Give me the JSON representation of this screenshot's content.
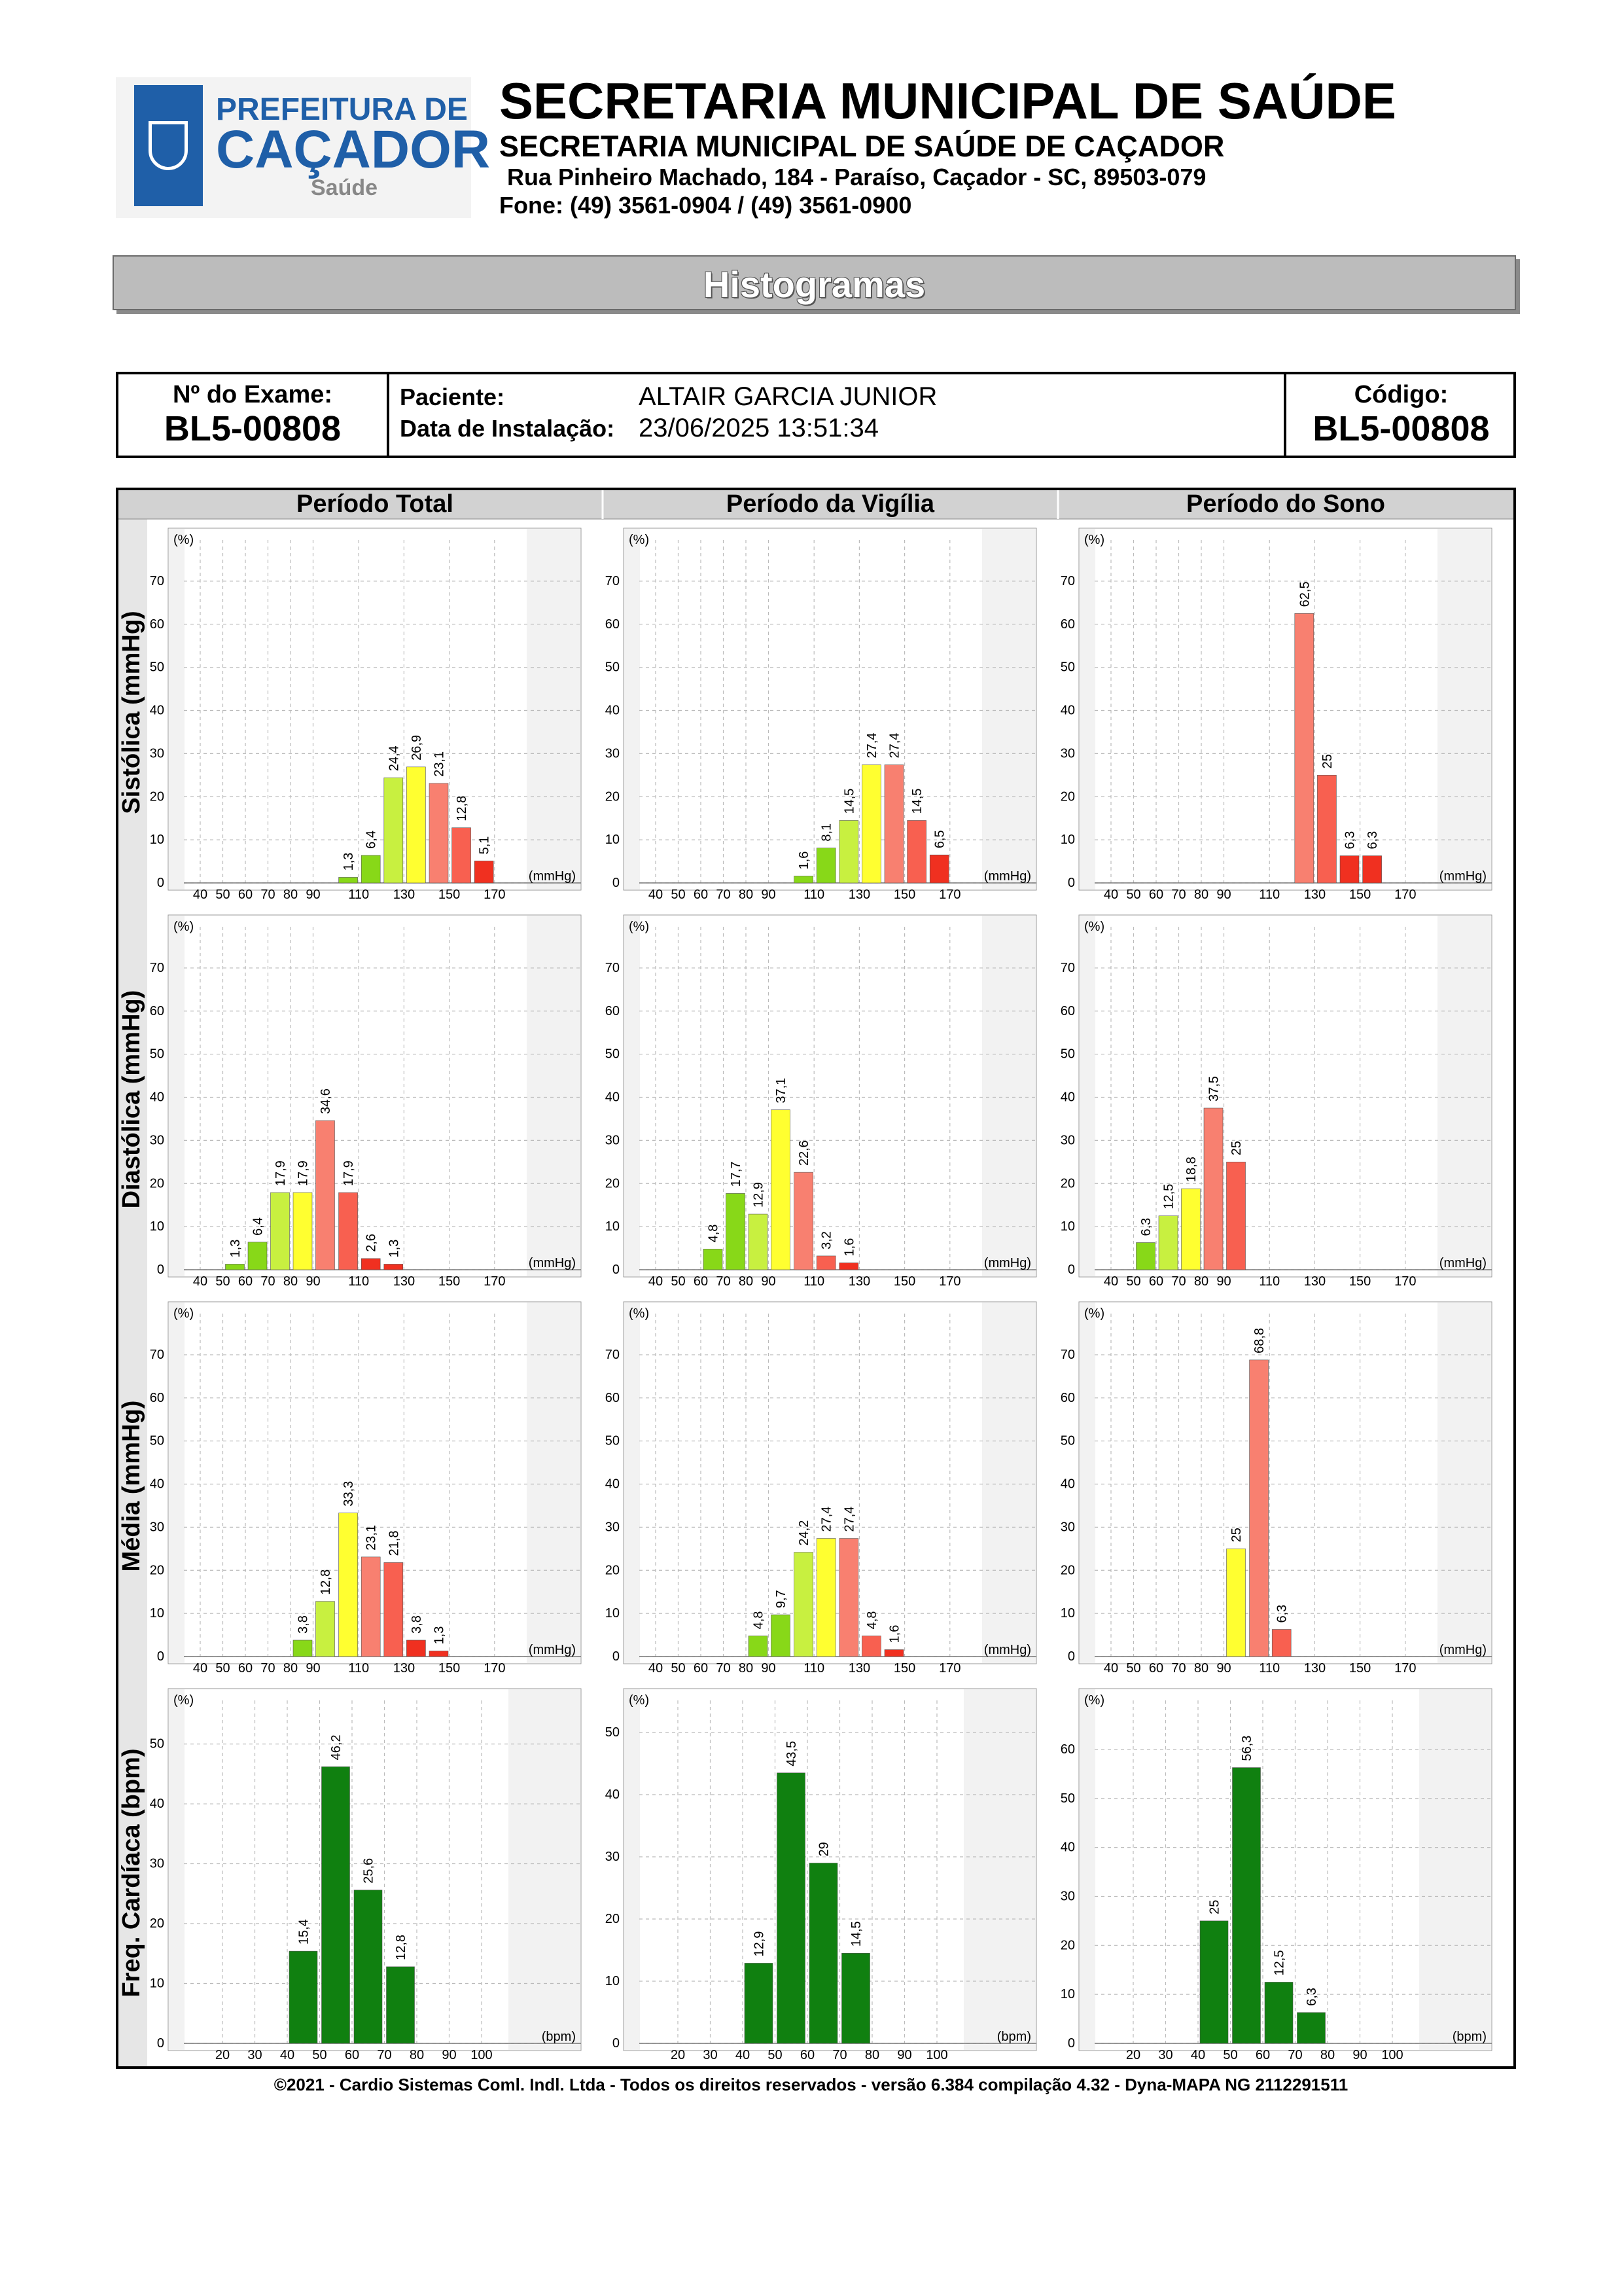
{
  "header": {
    "logo": {
      "line1": "PREFEITURA DE",
      "line2": "CAÇADOR",
      "line3": "Saúde"
    },
    "title": "SECRETARIA MUNICIPAL DE SAÚDE",
    "subtitle": "SECRETARIA MUNICIPAL DE SAÚDE DE CAÇADOR",
    "address": "Rua Pinheiro Machado, 184 - Paraíso, Caçador - SC, 89503-079",
    "phone": "Fone: (49) 3561-0904  / (49) 3561-0900"
  },
  "banner": {
    "title": "Histogramas"
  },
  "info": {
    "exam_label": "Nº do Exame:",
    "exam_value": "BL5-00808",
    "patient_label": "Paciente:",
    "patient_value": "ALTAIR GARCIA JUNIOR",
    "install_label": "Data de Instalação:",
    "install_value": "23/06/2025 13:51:34",
    "code_label": "Código:",
    "code_value": "BL5-00808"
  },
  "columns": [
    "Período Total",
    "Período da Vigília",
    "Período do Sono"
  ],
  "rows": [
    "Sistólica (mmHg)",
    "Diastólica (mmHg)",
    "Média (mmHg)",
    "Freq. Cardíaca (bpm)"
  ],
  "colors": {
    "green_light": "#88d818",
    "green_yellow": "#c8f040",
    "yellow": "#ffff30",
    "salmon": "#f88070",
    "red_light": "#f86050",
    "red": "#f03020",
    "hr_green": "#108010"
  },
  "chart_data": [
    {
      "type": "bar",
      "row": "Sistólica (mmHg)",
      "column": "Período Total",
      "y_unit": "(%)",
      "x_unit": "(mmHg)",
      "ylim": [
        0,
        75
      ],
      "yticks": [
        0,
        10,
        20,
        30,
        40,
        50,
        60,
        70
      ],
      "xticks": [
        "40",
        "50",
        "60",
        "70",
        "80",
        "90",
        "110",
        "130",
        "150",
        "170"
      ],
      "bins": [
        {
          "x": 100,
          "value": 1.3,
          "label": "1,3",
          "color": "green_light"
        },
        {
          "x": 110,
          "value": 6.4,
          "label": "6,4",
          "color": "green_light"
        },
        {
          "x": 120,
          "value": 24.4,
          "label": "24,4",
          "color": "green_yellow"
        },
        {
          "x": 130,
          "value": 26.9,
          "label": "26,9",
          "color": "yellow"
        },
        {
          "x": 140,
          "value": 23.1,
          "label": "23,1",
          "color": "salmon"
        },
        {
          "x": 150,
          "value": 12.8,
          "label": "12,8",
          "color": "red_light"
        },
        {
          "x": 160,
          "value": 5.1,
          "label": "5,1",
          "color": "red"
        }
      ]
    },
    {
      "type": "bar",
      "row": "Sistólica (mmHg)",
      "column": "Período da Vigília",
      "y_unit": "(%)",
      "x_unit": "(mmHg)",
      "ylim": [
        0,
        75
      ],
      "yticks": [
        0,
        10,
        20,
        30,
        40,
        50,
        60,
        70
      ],
      "xticks": [
        "40",
        "50",
        "60",
        "70",
        "80",
        "90",
        "110",
        "130",
        "150",
        "170"
      ],
      "bins": [
        {
          "x": 100,
          "value": 1.6,
          "label": "1,6",
          "color": "green_light"
        },
        {
          "x": 110,
          "value": 8.1,
          "label": "8,1",
          "color": "green_light"
        },
        {
          "x": 120,
          "value": 14.5,
          "label": "14,5",
          "color": "green_yellow"
        },
        {
          "x": 130,
          "value": 27.4,
          "label": "27,4",
          "color": "yellow"
        },
        {
          "x": 140,
          "value": 27.4,
          "label": "27,4",
          "color": "salmon"
        },
        {
          "x": 150,
          "value": 14.5,
          "label": "14,5",
          "color": "red_light"
        },
        {
          "x": 160,
          "value": 6.5,
          "label": "6,5",
          "color": "red"
        }
      ]
    },
    {
      "type": "bar",
      "row": "Sistólica (mmHg)",
      "column": "Período do Sono",
      "y_unit": "(%)",
      "x_unit": "(mmHg)",
      "ylim": [
        0,
        75
      ],
      "yticks": [
        0,
        10,
        20,
        30,
        40,
        50,
        60,
        70
      ],
      "xticks": [
        "40",
        "50",
        "60",
        "70",
        "80",
        "90",
        "110",
        "130",
        "150",
        "170"
      ],
      "bins": [
        {
          "x": 120,
          "value": 62.5,
          "label": "62,5",
          "color": "salmon"
        },
        {
          "x": 130,
          "value": 25,
          "label": "25",
          "color": "red_light"
        },
        {
          "x": 140,
          "value": 6.3,
          "label": "6,3",
          "color": "red"
        },
        {
          "x": 150,
          "value": 6.3,
          "label": "6,3",
          "color": "red"
        }
      ]
    },
    {
      "type": "bar",
      "row": "Diastólica (mmHg)",
      "column": "Período Total",
      "y_unit": "(%)",
      "x_unit": "(mmHg)",
      "ylim": [
        0,
        75
      ],
      "yticks": [
        0,
        10,
        20,
        30,
        40,
        50,
        60,
        70
      ],
      "xticks": [
        "40",
        "50",
        "60",
        "70",
        "80",
        "90",
        "110",
        "130",
        "150",
        "170"
      ],
      "bins": [
        {
          "x": 50,
          "value": 1.3,
          "label": "1,3",
          "color": "green_light"
        },
        {
          "x": 60,
          "value": 6.4,
          "label": "6,4",
          "color": "green_light"
        },
        {
          "x": 70,
          "value": 17.9,
          "label": "17,9",
          "color": "green_yellow"
        },
        {
          "x": 80,
          "value": 17.9,
          "label": "17,9",
          "color": "yellow"
        },
        {
          "x": 90,
          "value": 34.6,
          "label": "34,6",
          "color": "salmon"
        },
        {
          "x": 100,
          "value": 17.9,
          "label": "17,9",
          "color": "red_light"
        },
        {
          "x": 110,
          "value": 2.6,
          "label": "2,6",
          "color": "red"
        },
        {
          "x": 120,
          "value": 1.3,
          "label": "1,3",
          "color": "red"
        }
      ]
    },
    {
      "type": "bar",
      "row": "Diastólica (mmHg)",
      "column": "Período da Vigília",
      "y_unit": "(%)",
      "x_unit": "(mmHg)",
      "ylim": [
        0,
        75
      ],
      "yticks": [
        0,
        10,
        20,
        30,
        40,
        50,
        60,
        70
      ],
      "xticks": [
        "40",
        "50",
        "60",
        "70",
        "80",
        "90",
        "110",
        "130",
        "150",
        "170"
      ],
      "bins": [
        {
          "x": 60,
          "value": 4.8,
          "label": "4,8",
          "color": "green_light"
        },
        {
          "x": 70,
          "value": 17.7,
          "label": "17,7",
          "color": "green_light"
        },
        {
          "x": 80,
          "value": 12.9,
          "label": "12,9",
          "color": "green_yellow"
        },
        {
          "x": 90,
          "value": 37.1,
          "label": "37,1",
          "color": "yellow"
        },
        {
          "x": 100,
          "value": 22.6,
          "label": "22,6",
          "color": "salmon"
        },
        {
          "x": 110,
          "value": 3.2,
          "label": "3,2",
          "color": "red_light"
        },
        {
          "x": 120,
          "value": 1.6,
          "label": "1,6",
          "color": "red"
        }
      ]
    },
    {
      "type": "bar",
      "row": "Diastólica (mmHg)",
      "column": "Período do Sono",
      "y_unit": "(%)",
      "x_unit": "(mmHg)",
      "ylim": [
        0,
        75
      ],
      "yticks": [
        0,
        10,
        20,
        30,
        40,
        50,
        60,
        70
      ],
      "xticks": [
        "40",
        "50",
        "60",
        "70",
        "80",
        "90",
        "110",
        "130",
        "150",
        "170"
      ],
      "bins": [
        {
          "x": 50,
          "value": 6.3,
          "label": "6,3",
          "color": "green_light"
        },
        {
          "x": 60,
          "value": 12.5,
          "label": "12,5",
          "color": "green_yellow"
        },
        {
          "x": 70,
          "value": 18.8,
          "label": "18,8",
          "color": "yellow"
        },
        {
          "x": 80,
          "value": 37.5,
          "label": "37,5",
          "color": "salmon"
        },
        {
          "x": 90,
          "value": 25,
          "label": "25",
          "color": "red_light"
        }
      ]
    },
    {
      "type": "bar",
      "row": "Média (mmHg)",
      "column": "Período Total",
      "y_unit": "(%)",
      "x_unit": "(mmHg)",
      "ylim": [
        0,
        75
      ],
      "yticks": [
        0,
        10,
        20,
        30,
        40,
        50,
        60,
        70
      ],
      "xticks": [
        "40",
        "50",
        "60",
        "70",
        "80",
        "90",
        "110",
        "130",
        "150",
        "170"
      ],
      "bins": [
        {
          "x": 80,
          "value": 3.8,
          "label": "3,8",
          "color": "green_light"
        },
        {
          "x": 90,
          "value": 12.8,
          "label": "12,8",
          "color": "green_yellow"
        },
        {
          "x": 100,
          "value": 33.3,
          "label": "33,3",
          "color": "yellow"
        },
        {
          "x": 110,
          "value": 23.1,
          "label": "23,1",
          "color": "salmon"
        },
        {
          "x": 120,
          "value": 21.8,
          "label": "21,8",
          "color": "red_light"
        },
        {
          "x": 130,
          "value": 3.8,
          "label": "3,8",
          "color": "red"
        },
        {
          "x": 140,
          "value": 1.3,
          "label": "1,3",
          "color": "red"
        }
      ]
    },
    {
      "type": "bar",
      "row": "Média (mmHg)",
      "column": "Período da Vigília",
      "y_unit": "(%)",
      "x_unit": "(mmHg)",
      "ylim": [
        0,
        75
      ],
      "yticks": [
        0,
        10,
        20,
        30,
        40,
        50,
        60,
        70
      ],
      "xticks": [
        "40",
        "50",
        "60",
        "70",
        "80",
        "90",
        "110",
        "130",
        "150",
        "170"
      ],
      "bins": [
        {
          "x": 80,
          "value": 4.8,
          "label": "4,8",
          "color": "green_light"
        },
        {
          "x": 90,
          "value": 9.7,
          "label": "9,7",
          "color": "green_light"
        },
        {
          "x": 100,
          "value": 24.2,
          "label": "24,2",
          "color": "green_yellow"
        },
        {
          "x": 110,
          "value": 27.4,
          "label": "27,4",
          "color": "yellow"
        },
        {
          "x": 120,
          "value": 27.4,
          "label": "27,4",
          "color": "salmon"
        },
        {
          "x": 130,
          "value": 4.8,
          "label": "4,8",
          "color": "red_light"
        },
        {
          "x": 140,
          "value": 1.6,
          "label": "1,6",
          "color": "red"
        }
      ]
    },
    {
      "type": "bar",
      "row": "Média (mmHg)",
      "column": "Período do Sono",
      "y_unit": "(%)",
      "x_unit": "(mmHg)",
      "ylim": [
        0,
        75
      ],
      "yticks": [
        0,
        10,
        20,
        30,
        40,
        50,
        60,
        70
      ],
      "xticks": [
        "40",
        "50",
        "60",
        "70",
        "80",
        "90",
        "110",
        "130",
        "150",
        "170"
      ],
      "bins": [
        {
          "x": 90,
          "value": 25,
          "label": "25",
          "color": "yellow"
        },
        {
          "x": 100,
          "value": 68.8,
          "label": "68,8",
          "color": "salmon"
        },
        {
          "x": 110,
          "value": 6.3,
          "label": "6,3",
          "color": "red_light"
        }
      ]
    },
    {
      "type": "bar",
      "row": "Freq. Cardíaca (bpm)",
      "column": "Período Total",
      "y_unit": "(%)",
      "x_unit": "(bpm)",
      "ylim": [
        0,
        54
      ],
      "yticks": [
        0,
        10,
        20,
        30,
        40,
        50
      ],
      "xticks": [
        "20",
        "30",
        "40",
        "50",
        "60",
        "70",
        "80",
        "90",
        "100"
      ],
      "bins": [
        {
          "x": 40,
          "value": 15.4,
          "label": "15,4",
          "color": "hr_green"
        },
        {
          "x": 50,
          "value": 46.2,
          "label": "46,2",
          "color": "hr_green"
        },
        {
          "x": 60,
          "value": 25.6,
          "label": "25,6",
          "color": "hr_green"
        },
        {
          "x": 70,
          "value": 12.8,
          "label": "12,8",
          "color": "hr_green"
        }
      ]
    },
    {
      "type": "bar",
      "row": "Freq. Cardíaca (bpm)",
      "column": "Período da Vigília",
      "y_unit": "(%)",
      "x_unit": "(bpm)",
      "ylim": [
        0,
        52
      ],
      "yticks": [
        0,
        10,
        20,
        30,
        40,
        50
      ],
      "xticks": [
        "20",
        "30",
        "40",
        "50",
        "60",
        "70",
        "80",
        "90",
        "100"
      ],
      "bins": [
        {
          "x": 40,
          "value": 12.9,
          "label": "12,9",
          "color": "hr_green"
        },
        {
          "x": 50,
          "value": 43.5,
          "label": "43,5",
          "color": "hr_green"
        },
        {
          "x": 60,
          "value": 29,
          "label": "29",
          "color": "hr_green"
        },
        {
          "x": 70,
          "value": 14.5,
          "label": "14,5",
          "color": "hr_green"
        }
      ]
    },
    {
      "type": "bar",
      "row": "Freq. Cardíaca (bpm)",
      "column": "Período do Sono",
      "y_unit": "(%)",
      "x_unit": "(bpm)",
      "ylim": [
        0,
        66
      ],
      "yticks": [
        0,
        10,
        20,
        30,
        40,
        50,
        60
      ],
      "xticks": [
        "20",
        "30",
        "40",
        "50",
        "60",
        "70",
        "80",
        "90",
        "100"
      ],
      "bins": [
        {
          "x": 40,
          "value": 25,
          "label": "25",
          "color": "hr_green"
        },
        {
          "x": 50,
          "value": 56.3,
          "label": "56,3",
          "color": "hr_green"
        },
        {
          "x": 60,
          "value": 12.5,
          "label": "12,5",
          "color": "hr_green"
        },
        {
          "x": 70,
          "value": 6.3,
          "label": "6,3",
          "color": "hr_green"
        }
      ]
    }
  ],
  "footer": "©2021 - Cardio Sistemas Coml. Indl. Ltda - Todos os direitos reservados - versão 6.384 compilação 4.32 - Dyna-MAPA NG 2112291511"
}
